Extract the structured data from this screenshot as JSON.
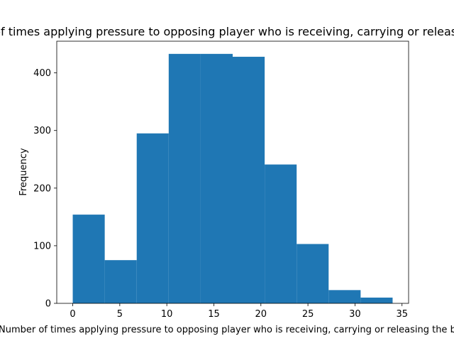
{
  "chart_data": {
    "type": "bar",
    "title": "Number of times applying pressure to opposing player who is receiving, carrying or releasing the ball",
    "xlabel": "Number of times applying pressure to opposing player who is receiving, carrying or releasing the ball",
    "ylabel": "Frequency",
    "bins": [
      {
        "x0": 0.0,
        "x1": 3.4,
        "value": 154
      },
      {
        "x0": 3.4,
        "x1": 6.8,
        "value": 75
      },
      {
        "x0": 6.8,
        "x1": 10.2,
        "value": 295
      },
      {
        "x0": 10.2,
        "x1": 13.6,
        "value": 433
      },
      {
        "x0": 13.6,
        "x1": 17.0,
        "value": 433
      },
      {
        "x0": 17.0,
        "x1": 20.4,
        "value": 428
      },
      {
        "x0": 20.4,
        "x1": 23.8,
        "value": 241
      },
      {
        "x0": 23.8,
        "x1": 27.2,
        "value": 103
      },
      {
        "x0": 27.2,
        "x1": 30.6,
        "value": 23
      },
      {
        "x0": 30.6,
        "x1": 34.0,
        "value": 10
      }
    ],
    "xlim": [
      -1.7,
      35.7
    ],
    "ylim": [
      0,
      455
    ],
    "xticks": [
      0,
      5,
      10,
      15,
      20,
      25,
      30,
      35
    ],
    "yticks": [
      0,
      100,
      200,
      300,
      400
    ],
    "grid": false,
    "bar_color": "#1f77b4"
  }
}
